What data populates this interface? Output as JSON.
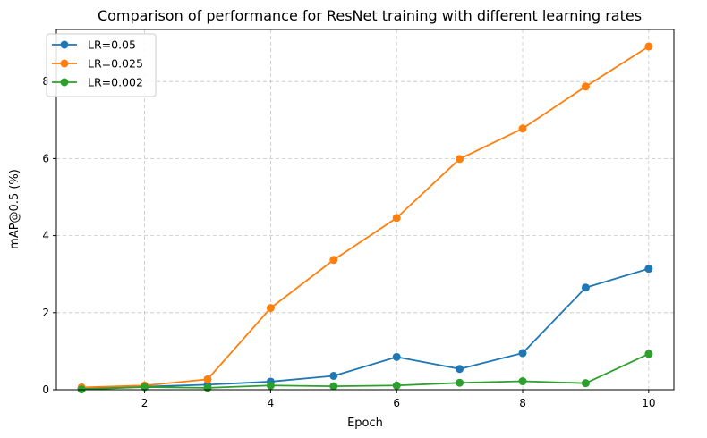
{
  "chart_data": {
    "type": "line",
    "title": "Comparison of performance for ResNet training with different learning rates",
    "xlabel": "Epoch",
    "ylabel": "mAP@0.5 (%)",
    "xlim": [
      0.6,
      10.4
    ],
    "ylim": [
      0,
      9.35
    ],
    "xticks": [
      2,
      4,
      6,
      8,
      10
    ],
    "xtick_labels": [
      "2",
      "4",
      "6",
      "8",
      "10"
    ],
    "yticks": [
      0,
      2,
      4,
      6,
      8
    ],
    "ytick_labels": [
      "0",
      "2",
      "4",
      "6",
      "8"
    ],
    "grid": true,
    "legend_position": "top-left",
    "x": [
      1,
      2,
      3,
      4,
      5,
      6,
      7,
      8,
      9,
      10
    ],
    "series": [
      {
        "name": "LR=0.05",
        "color": "#1f77b4",
        "marker": "circle",
        "values": [
          0.03,
          0.08,
          0.13,
          0.21,
          0.36,
          0.85,
          0.54,
          0.95,
          2.65,
          3.14
        ]
      },
      {
        "name": "LR=0.025",
        "color": "#ff7f0e",
        "marker": "circle",
        "values": [
          0.06,
          0.11,
          0.27,
          2.12,
          3.37,
          4.46,
          5.99,
          6.78,
          7.87,
          8.91
        ]
      },
      {
        "name": "LR=0.002",
        "color": "#2ca02c",
        "marker": "circle",
        "values": [
          0.01,
          0.07,
          0.05,
          0.11,
          0.09,
          0.11,
          0.18,
          0.22,
          0.17,
          0.93
        ]
      }
    ]
  }
}
